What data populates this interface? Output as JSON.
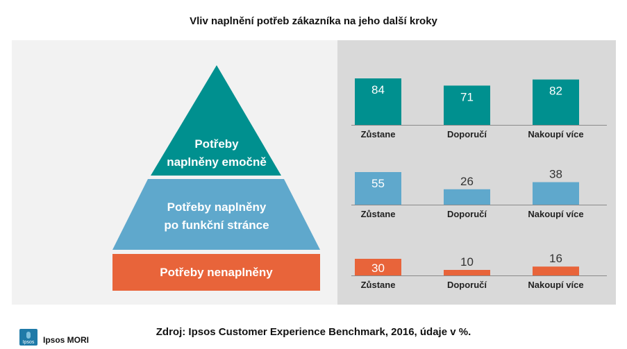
{
  "title": "Vliv naplnění potřeb zákazníka na jeho další kroky",
  "pyramid": {
    "top": [
      "Potřeby",
      "naplněny emočně"
    ],
    "middle": [
      "Potřeby naplněny",
      "po funkční stránce"
    ],
    "bottom": "Potřeby nenaplněny"
  },
  "colors": {
    "teal": "#00908f",
    "blue": "#5fa8cc",
    "orange": "#e8643a",
    "left_panel": "#f2f2f2",
    "right_panel": "#d9d9d9"
  },
  "chart_data": [
    {
      "type": "bar",
      "series_key": "emocne",
      "categories": [
        "Zůstane",
        "Doporučí",
        "Nakoupí více"
      ],
      "values": [
        84,
        71,
        82
      ],
      "color": "#00908f",
      "ylim": [
        0,
        84
      ]
    },
    {
      "type": "bar",
      "series_key": "funkcni",
      "categories": [
        "Zůstane",
        "Doporučí",
        "Nakoupí více"
      ],
      "values": [
        55,
        26,
        38
      ],
      "color": "#5fa8cc",
      "ylim": [
        0,
        84
      ]
    },
    {
      "type": "bar",
      "series_key": "nenaplneny",
      "categories": [
        "Zůstane",
        "Doporučí",
        "Nakoupí více"
      ],
      "values": [
        30,
        10,
        16
      ],
      "color": "#e8643a",
      "ylim": [
        0,
        84
      ]
    }
  ],
  "source": "Zdroj: Ipsos Customer Experience Benchmark, 2016, údaje v %.",
  "logo": {
    "box_text": "Ipsos",
    "name": "Ipsos MORI"
  }
}
